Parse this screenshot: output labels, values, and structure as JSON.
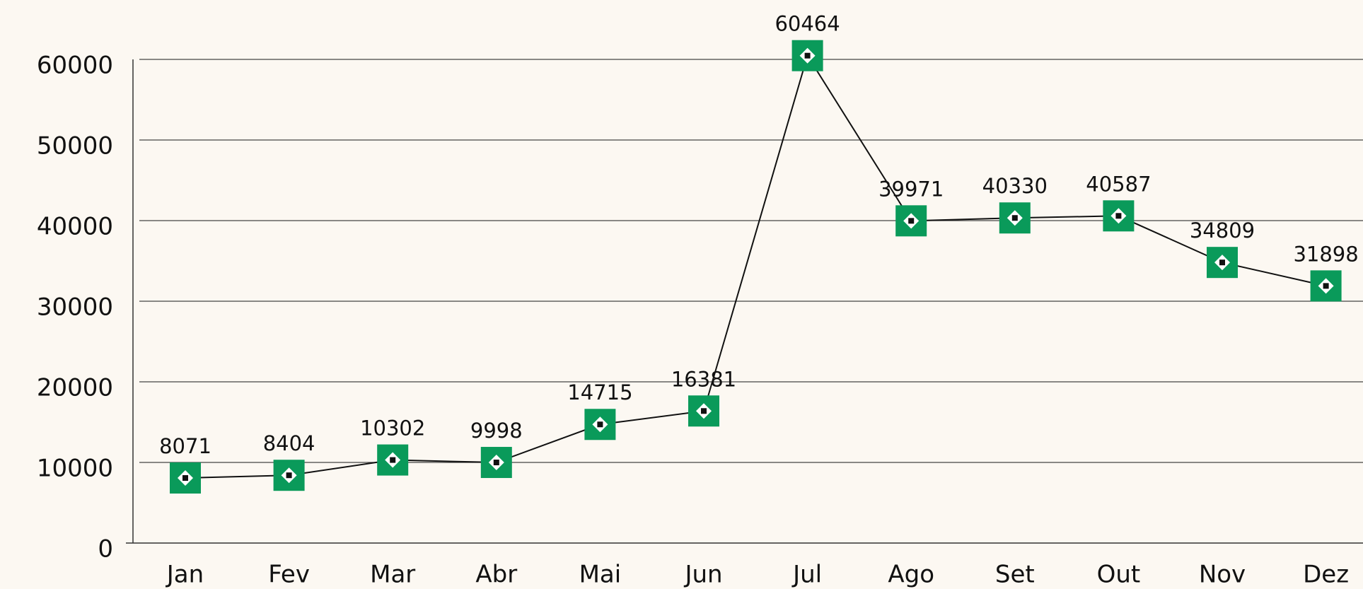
{
  "chart_data": {
    "type": "line",
    "categories": [
      "Jan",
      "Fev",
      "Mar",
      "Abr",
      "Mai",
      "Jun",
      "Jul",
      "Ago",
      "Set",
      "Out",
      "Nov",
      "Dez"
    ],
    "values": [
      8071,
      8404,
      10302,
      9998,
      14715,
      16381,
      60464,
      39971,
      40330,
      40587,
      34809,
      31898
    ],
    "color": "#0a9a5a",
    "ylim": [
      0,
      60000
    ],
    "yticks": [
      0,
      10000,
      20000,
      30000,
      40000,
      50000,
      60000
    ],
    "grid": true
  }
}
